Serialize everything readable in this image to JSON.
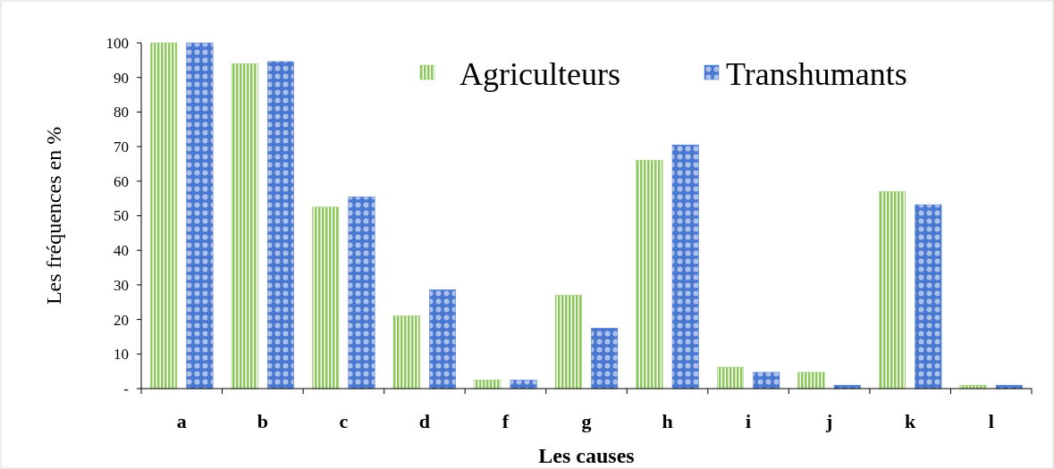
{
  "chart_data": {
    "type": "bar",
    "xlabel": "Les causes",
    "ylabel": "Les fréquences en %",
    "categories": [
      "a",
      "b",
      "c",
      "d",
      "f",
      "g",
      "h",
      "i",
      "j",
      "k",
      "l"
    ],
    "series": [
      {
        "name": "Agriculteurs",
        "color": "#8cc85a",
        "values": [
          100,
          94,
          52.5,
          21,
          2.5,
          27,
          66,
          6.2,
          4.7,
          57,
          1
        ]
      },
      {
        "name": "Transhumants",
        "color": "#4a78d0",
        "values": [
          100,
          94.6,
          55.5,
          28.6,
          2.5,
          17.5,
          70.5,
          4.7,
          1,
          53.2,
          1
        ]
      }
    ],
    "ylim": [
      0,
      100
    ],
    "yticks": [
      {
        "value": 0,
        "label": "-"
      },
      10,
      20,
      30,
      40,
      50,
      60,
      70,
      80,
      90,
      100
    ],
    "grid": false,
    "legend": "top right"
  }
}
